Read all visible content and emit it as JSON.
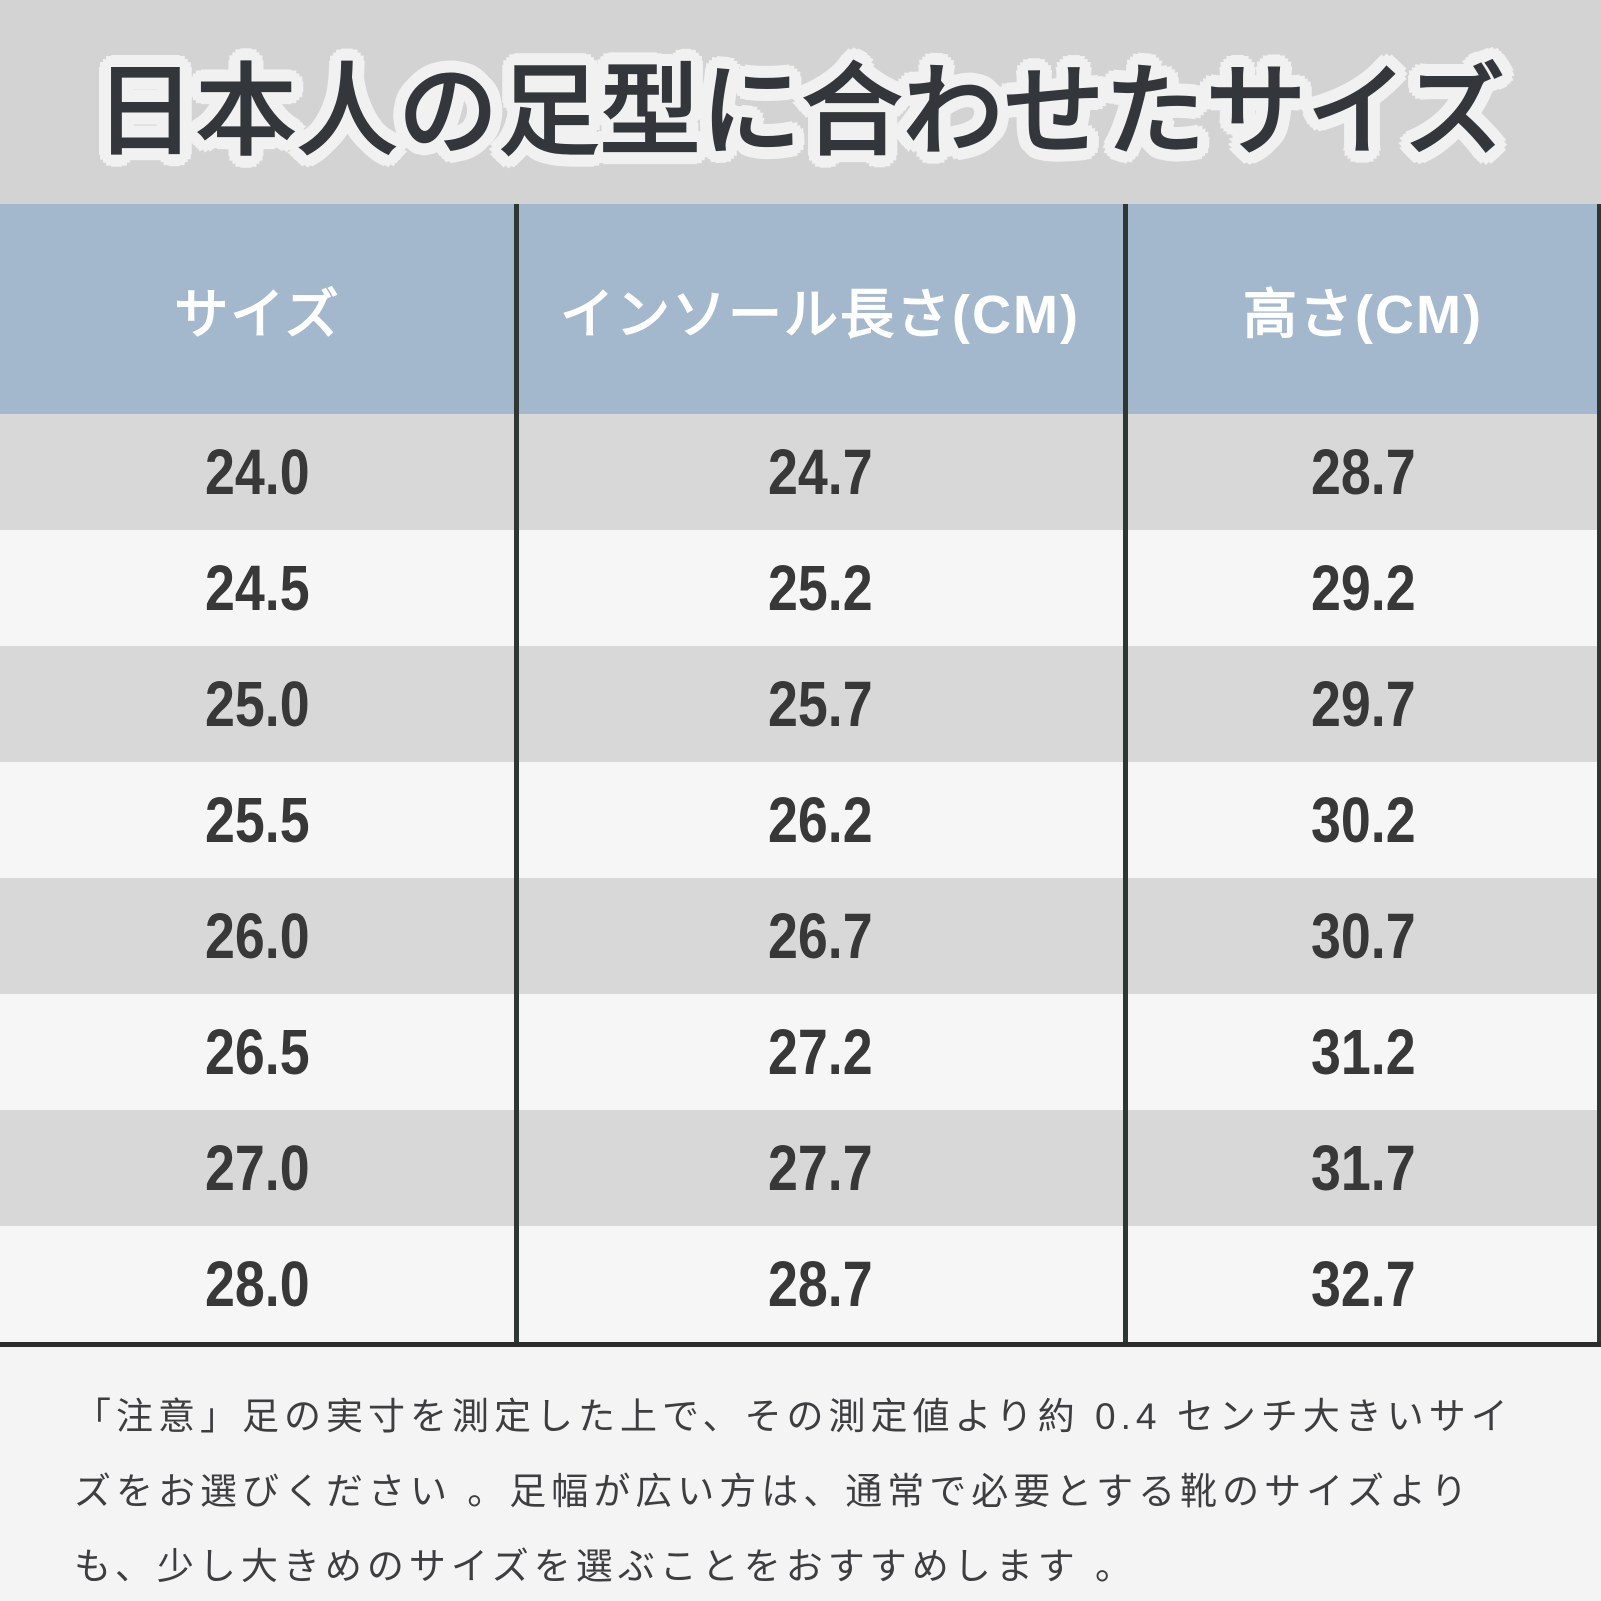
{
  "title": "日本人の足型に合わせたサイズ",
  "table": {
    "headers": [
      "サイズ",
      "インソール長さ(CM)",
      "高さ(CM)"
    ],
    "rows": [
      [
        "24.0",
        "24.7",
        "28.7"
      ],
      [
        "24.5",
        "25.2",
        "29.2"
      ],
      [
        "25.0",
        "25.7",
        "29.7"
      ],
      [
        "25.5",
        "26.2",
        "30.2"
      ],
      [
        "26.0",
        "26.7",
        "30.7"
      ],
      [
        "26.5",
        "27.2",
        "31.2"
      ],
      [
        "27.0",
        "27.7",
        "31.7"
      ],
      [
        "28.0",
        "28.7",
        "32.7"
      ]
    ]
  },
  "note": "「注意」足の実寸を測定した上で、その測定値より約 0.4 センチ大きいサイズをお選びください 。足幅が広い方は、通常で必要とする靴のサイズよりも、少し大きめのサイズを選ぶことをおすすめします 。",
  "colors": {
    "title_background": "#d3d3d4",
    "title_text": "#33363b",
    "title_outline": "#f1f1f2",
    "header_background": "#a3b7cd",
    "header_text": "#ffffff",
    "row_stripe_gray": "#d8d8d9",
    "row_stripe_light": "#f6f6f7",
    "divider_line": "#2e3734",
    "bottom_border": "#2b2c2b",
    "note_background": "#f4f4f5",
    "body_text": "#383838"
  },
  "chart_data": {
    "type": "table",
    "title": "日本人の足型に合わせたサイズ",
    "columns": [
      "サイズ",
      "インソール長さ(CM)",
      "高さ(CM)"
    ],
    "rows": [
      [
        24.0,
        24.7,
        28.7
      ],
      [
        24.5,
        25.2,
        29.2
      ],
      [
        25.0,
        25.7,
        29.7
      ],
      [
        25.5,
        26.2,
        30.2
      ],
      [
        26.0,
        26.7,
        30.7
      ],
      [
        26.5,
        27.2,
        31.2
      ],
      [
        27.0,
        27.7,
        31.7
      ],
      [
        28.0,
        28.7,
        32.7
      ]
    ]
  }
}
